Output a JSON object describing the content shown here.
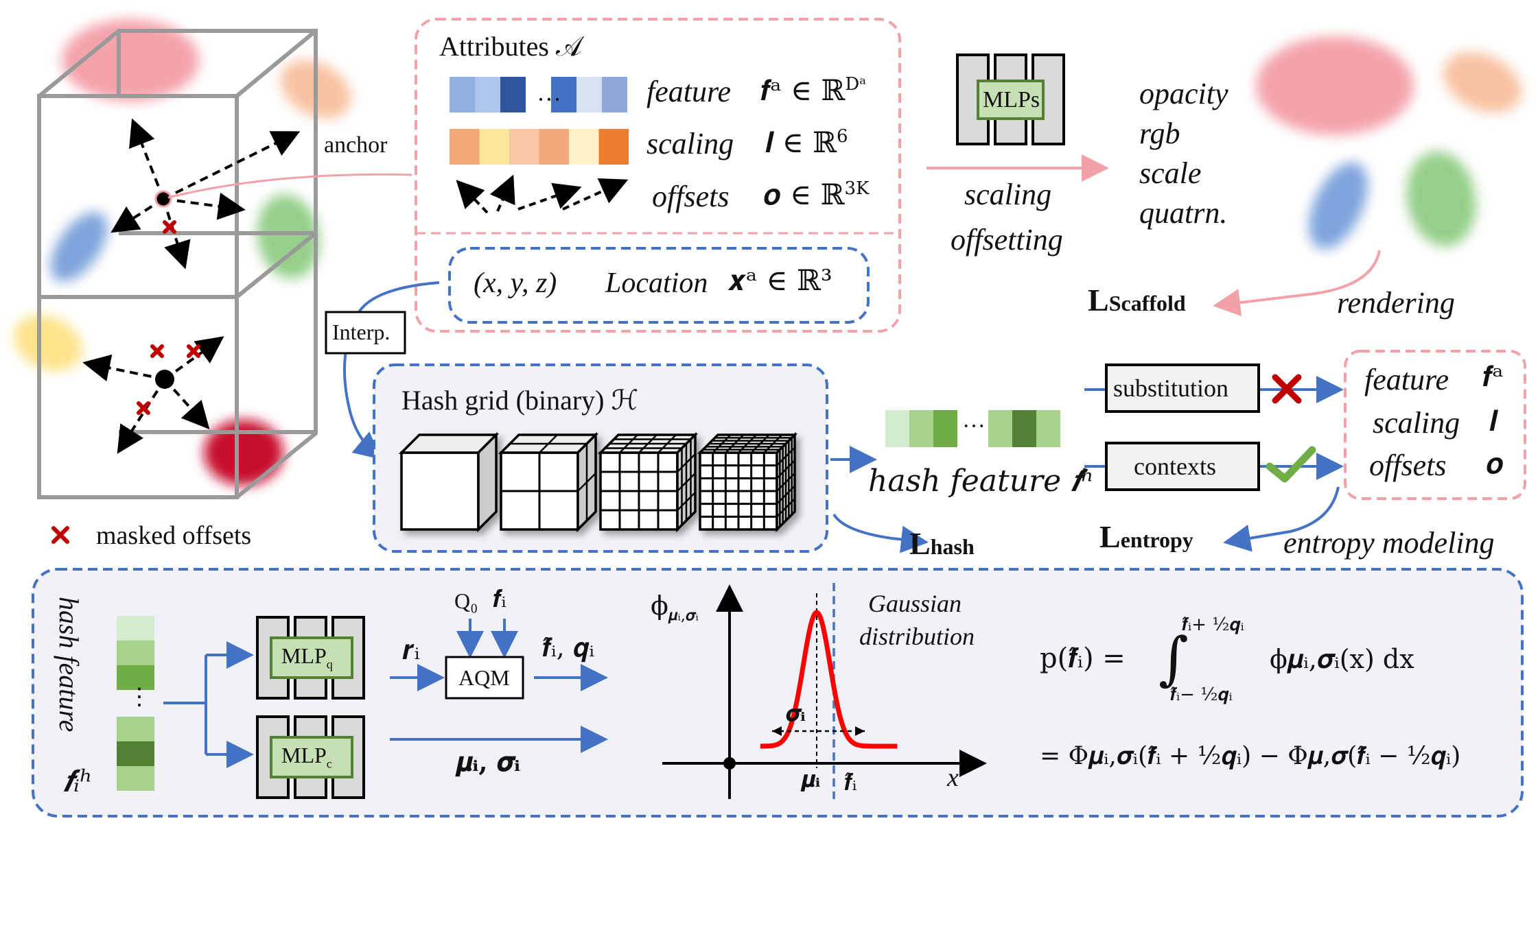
{
  "anchor_panel": {
    "anchor_label": "anchor",
    "masked_label": "masked offsets"
  },
  "attributes": {
    "title": "Attributes 𝒜",
    "feature": {
      "name": "feature",
      "math": "𝒇ᵃ ∈ ℝ",
      "sup": "Dᵃ"
    },
    "scaling": {
      "name": "scaling",
      "math": "𝒍 ∈ ℝ",
      "sup": "6"
    },
    "offsets": {
      "name": "offsets",
      "math": "𝒐 ∈ ℝ",
      "sup": "3K"
    },
    "feature_dots": "···",
    "feature_colors": [
      "#8fb0e0",
      "#adc5ea",
      "#2f569c",
      "#4472c4",
      "#d6e2f4",
      "#8fa9dd"
    ],
    "scaling_colors": [
      "#f2a774",
      "#fde59a",
      "#f8c8a6",
      "#f2aa7c",
      "#fff0c8",
      "#ed7d31"
    ]
  },
  "location": {
    "xyz": "(x, y, z)",
    "label": "Location",
    "math": "𝒙ᵃ ∈ ℝ³"
  },
  "mlps": {
    "label": "MLPs",
    "caption_1": "scaling",
    "caption_2": "offsetting"
  },
  "outputs": {
    "items": [
      "opacity",
      "rgb",
      "scale",
      "quatrn."
    ],
    "rendering": "rendering"
  },
  "loss": {
    "scaffold": {
      "L": "L",
      "sub": "Scaffold"
    },
    "hash": {
      "L": "L",
      "sub": "hash"
    },
    "entropy": {
      "L": "L",
      "sub": "entropy"
    }
  },
  "interp": "Interp.",
  "hash_grid": {
    "title": "Hash grid (binary) ℋ"
  },
  "hash_feature": {
    "label": "hash feature 𝒇ʰ",
    "dots": "···",
    "colors": [
      "#d5ebcf",
      "#a9d18e",
      "#70ad47",
      "#a9d18e",
      "#548235",
      "#a9d18e"
    ]
  },
  "substitution": "substitution",
  "contexts": "contexts",
  "entropy_modeling": "entropy modeling",
  "right_attrs": {
    "feature": {
      "name": "feature",
      "math": "𝒇ᵃ"
    },
    "scaling": {
      "name": "scaling",
      "math": "𝒍"
    },
    "offsets": {
      "name": "offsets",
      "math": "𝒐"
    }
  },
  "bottom": {
    "side_label": "hash feature",
    "side_math": "𝒇ᵢʰ",
    "stack_colors": [
      "#d5ebcf",
      "#a9d18e",
      "#70ad47",
      "#a9d18e",
      "#548235",
      "#a9d18e"
    ],
    "stack_dots": "⋮",
    "mlp_q": "MLP",
    "mlp_q_sub": "q",
    "mlp_c": "MLP",
    "mlp_c_sub": "c",
    "r_i": "𝒓ᵢ",
    "q0": "Q₀",
    "f_i": "𝒇ᵢ",
    "aqm": "AQM",
    "fhat_q": "𝒇̂ᵢ, 𝒒ᵢ",
    "mu_sigma": "𝝁ᵢ, 𝝈ᵢ",
    "gauss_title_1": "Gaussian",
    "gauss_title_2": "distribution",
    "phi_label": "ϕ",
    "phi_sub": "𝝁ᵢ,𝝈ᵢ",
    "sigma_label": "𝝈ᵢ",
    "mu_label": "𝝁ᵢ",
    "fhat_label": "𝒇̂ᵢ",
    "x_label": "x",
    "eq1_lhs": "p(𝒇̂ᵢ) =",
    "eq1_int": "∫",
    "eq1_upper": "𝒇̂ᵢ+ ½𝒒ᵢ",
    "eq1_lower": "𝒇̂ᵢ− ½𝒒ᵢ",
    "eq1_rhs": "ϕ𝝁ᵢ,𝝈ᵢ(x) dx",
    "eq2": "= Φ𝝁ᵢ,𝝈ᵢ(𝒇̂ᵢ + ½𝒒ᵢ) − Φ𝝁,𝝈(𝒇̂ᵢ − ½𝒒ᵢ)"
  },
  "gaussian": {
    "mu": 0,
    "sigma": 1,
    "x_range": [
      -4.2,
      6.0
    ]
  },
  "colors": {
    "pink": "#f4a0a8",
    "blue": "#4472c4",
    "green_fill": "#c6e0b4",
    "green_edge": "#538135",
    "red": "#c00000",
    "curve": "#ff0000"
  }
}
